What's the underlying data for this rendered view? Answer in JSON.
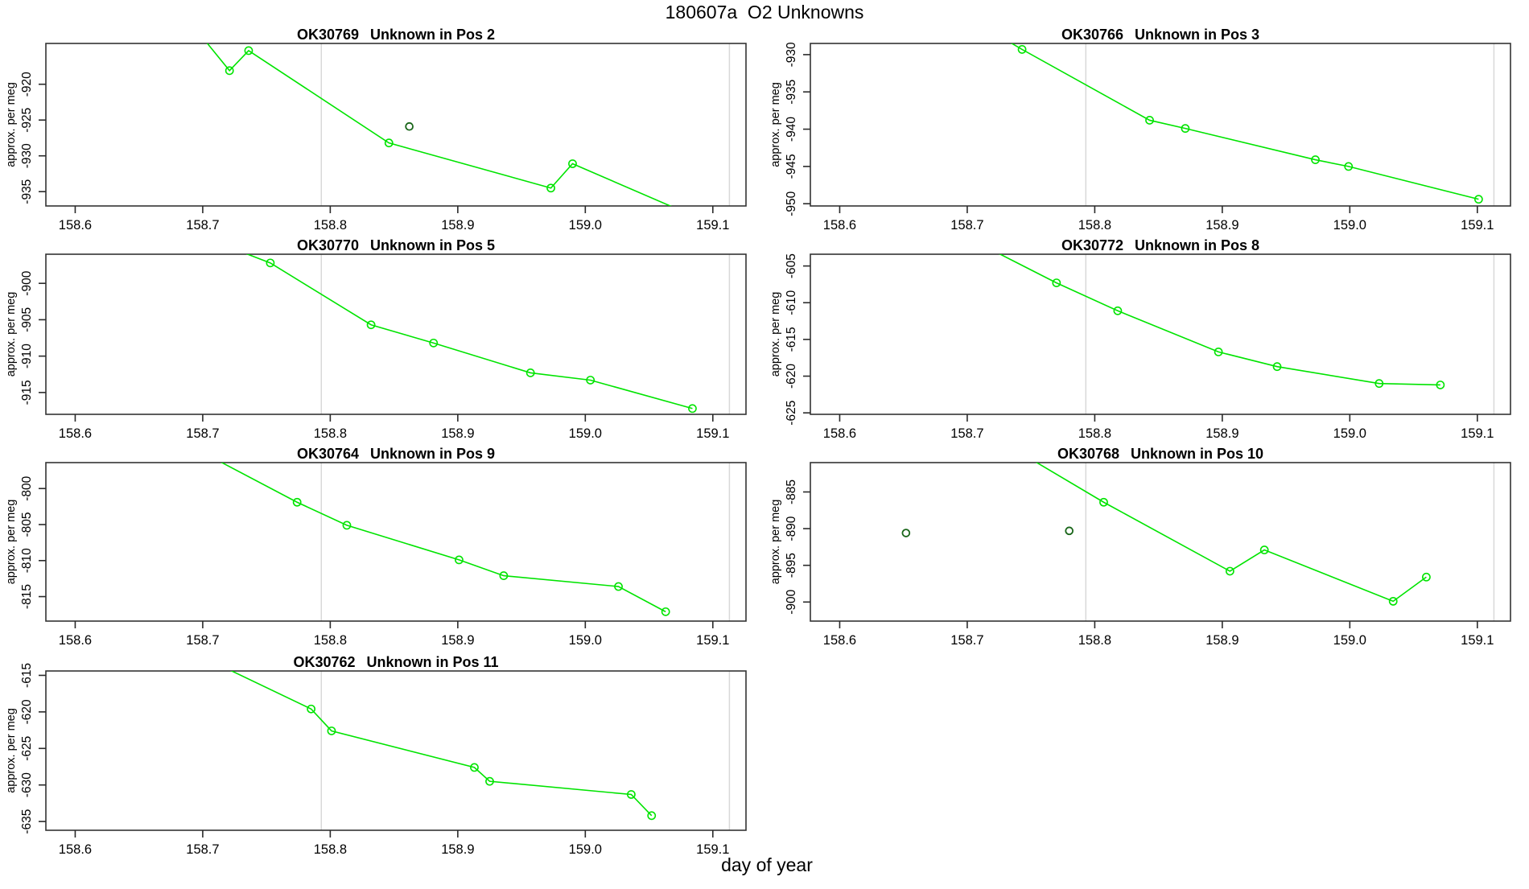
{
  "figure": {
    "title": "180607a  O2 Unknowns",
    "xlabel": "day of year"
  },
  "colors": {
    "background": "#ffffff",
    "series_line": "#00e400",
    "series_marker": "#00e400",
    "flagged_marker": "#1a661a",
    "reference_line": "#d8d8d8",
    "axis_box": "#333333",
    "tick": "#2a2a2a",
    "text": "#000000"
  },
  "chart_data": {
    "type": "line",
    "title": "180607a  O2 Unknowns",
    "xlabel": "day of year",
    "ylabel": "approx. per meg",
    "marker": "open-circle",
    "legend": "none",
    "grid": "vertical-reference-lines-only",
    "xlim": [
      158.577,
      159.126
    ],
    "x_ticks": [
      158.6,
      158.7,
      158.8,
      158.9,
      159.0,
      159.1
    ],
    "reference_vlines": [
      158.793,
      159.113
    ],
    "panels": [
      {
        "id": "OK30769",
        "title_parts": [
          "OK30769",
          "Unknown in Pos 2"
        ],
        "position": "Pos 2",
        "row": 0,
        "col": 0,
        "ylabel": "approx. per meg",
        "ylim": [
          -937.0,
          -914.3
        ],
        "y_ticks": [
          -935,
          -930,
          -925,
          -920
        ],
        "series": [
          {
            "name": "run",
            "x": [
              158.7,
              158.721,
              158.736,
              158.846,
              158.973,
              158.99,
              159.09
            ],
            "y": [
              -913.5,
              -918.1,
              -915.3,
              -928.2,
              -934.5,
              -931.1,
              -938.8
            ]
          }
        ],
        "flagged_points": [
          {
            "x": 158.862,
            "y": -925.9
          }
        ]
      },
      {
        "id": "OK30766",
        "title_parts": [
          "OK30766",
          "Unknown in Pos 3"
        ],
        "position": "Pos 3",
        "row": 0,
        "col": 1,
        "ylabel": "approx. per meg",
        "ylim": [
          -950.3,
          -928.5
        ],
        "y_ticks": [
          -950,
          -945,
          -940,
          -935,
          -930
        ],
        "series": [
          {
            "name": "run",
            "x": [
              158.71,
              158.743,
              158.843,
              158.871,
              158.973,
              158.999,
              159.101
            ],
            "y": [
              -926.0,
              -929.3,
              -938.8,
              -939.9,
              -944.1,
              -945.0,
              -949.4
            ]
          }
        ],
        "flagged_points": []
      },
      {
        "id": "OK30770",
        "title_parts": [
          "OK30770",
          "Unknown in Pos 5"
        ],
        "position": "Pos 5",
        "row": 1,
        "col": 0,
        "ylabel": "approx. per meg",
        "ylim": [
          -918.0,
          -896.0
        ],
        "y_ticks": [
          -915,
          -910,
          -905,
          -900
        ],
        "series": [
          {
            "name": "run",
            "x": [
              158.71,
              158.753,
              158.832,
              158.881,
              158.957,
              159.004,
              159.084
            ],
            "y": [
              -894.3,
              -897.2,
              -905.7,
              -908.2,
              -912.3,
              -913.3,
              -917.2
            ]
          }
        ],
        "flagged_points": []
      },
      {
        "id": "OK30772",
        "title_parts": [
          "OK30772",
          "Unknown in Pos 8"
        ],
        "position": "Pos 8",
        "row": 1,
        "col": 1,
        "ylabel": "approx. per meg",
        "ylim": [
          -625.2,
          -603.4
        ],
        "y_ticks": [
          -625,
          -620,
          -615,
          -610,
          -605
        ],
        "series": [
          {
            "name": "run",
            "x": [
              158.71,
              158.77,
              158.818,
              158.897,
              158.943,
              159.023,
              159.071
            ],
            "y": [
              -602.0,
              -607.3,
              -611.1,
              -616.7,
              -618.7,
              -621.0,
              -621.2
            ]
          }
        ],
        "flagged_points": []
      },
      {
        "id": "OK30764",
        "title_parts": [
          "OK30764",
          "Unknown in Pos 9"
        ],
        "position": "Pos 9",
        "row": 2,
        "col": 0,
        "ylabel": "approx. per meg",
        "ylim": [
          -818.4,
          -796.4
        ],
        "y_ticks": [
          -815,
          -810,
          -805,
          -800
        ],
        "series": [
          {
            "name": "run",
            "x": [
              158.7,
              158.774,
              158.813,
              158.901,
              158.936,
              159.026,
              159.063
            ],
            "y": [
              -795.0,
              -801.9,
              -805.1,
              -809.9,
              -812.1,
              -813.6,
              -817.1
            ]
          }
        ],
        "flagged_points": []
      },
      {
        "id": "OK30768",
        "title_parts": [
          "OK30768",
          "Unknown in Pos 10"
        ],
        "position": "Pos 10",
        "row": 2,
        "col": 1,
        "ylabel": "approx. per meg",
        "ylim": [
          -902.6,
          -881.0
        ],
        "y_ticks": [
          -900,
          -895,
          -890,
          -885
        ],
        "series": [
          {
            "name": "run",
            "x": [
              158.74,
              158.807,
              158.906,
              158.933,
              159.034,
              159.06
            ],
            "y": [
              -879.5,
              -886.4,
              -895.8,
              -892.9,
              -899.9,
              -896.6
            ]
          }
        ],
        "flagged_points": [
          {
            "x": 158.652,
            "y": -890.6
          },
          {
            "x": 158.78,
            "y": -890.3
          }
        ]
      },
      {
        "id": "OK30762",
        "title_parts": [
          "OK30762",
          "Unknown in Pos 11"
        ],
        "position": "Pos 11",
        "row": 3,
        "col": 0,
        "ylabel": "approx. per meg",
        "ylim": [
          -636.2,
          -614.4
        ],
        "y_ticks": [
          -635,
          -630,
          -625,
          -620,
          -615
        ],
        "series": [
          {
            "name": "run",
            "x": [
              158.7,
              158.785,
              158.801,
              158.913,
              158.925,
              159.036,
              159.052
            ],
            "y": [
              -612.5,
              -619.6,
              -622.6,
              -627.6,
              -629.5,
              -631.3,
              -634.2
            ]
          }
        ],
        "flagged_points": []
      }
    ]
  }
}
